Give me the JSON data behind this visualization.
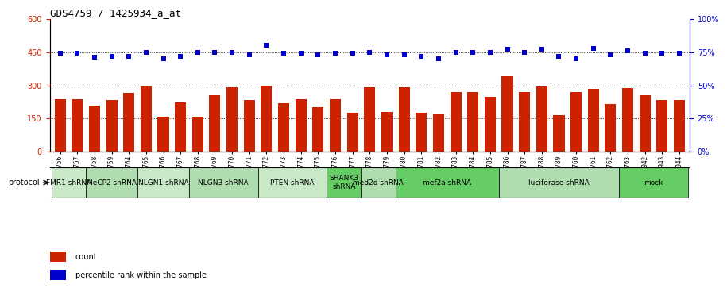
{
  "title": "GDS4759 / 1425934_a_at",
  "samples": [
    "GSM1145756",
    "GSM1145757",
    "GSM1145758",
    "GSM1145759",
    "GSM1145764",
    "GSM1145765",
    "GSM1145766",
    "GSM1145767",
    "GSM1145768",
    "GSM1145769",
    "GSM1145770",
    "GSM1145771",
    "GSM1145772",
    "GSM1145773",
    "GSM1145774",
    "GSM1145775",
    "GSM1145776",
    "GSM1145777",
    "GSM1145778",
    "GSM1145779",
    "GSM1145780",
    "GSM1145781",
    "GSM1145782",
    "GSM1145783",
    "GSM1145784",
    "GSM1145785",
    "GSM1145786",
    "GSM1145787",
    "GSM1145788",
    "GSM1145789",
    "GSM1145760",
    "GSM1145761",
    "GSM1145762",
    "GSM1145763",
    "GSM1145942",
    "GSM1145943",
    "GSM1145944"
  ],
  "bar_values": [
    237,
    237,
    210,
    232,
    265,
    300,
    157,
    222,
    157,
    255,
    290,
    235,
    300,
    220,
    237,
    200,
    237,
    175,
    290,
    178,
    290,
    175,
    169,
    270,
    270,
    247,
    340,
    270,
    295,
    167,
    270,
    285,
    217,
    287,
    255,
    235,
    232
  ],
  "percentile_values": [
    74,
    74,
    71,
    72,
    72,
    75,
    70,
    72,
    75,
    75,
    75,
    73,
    80,
    74,
    74,
    73,
    74,
    74,
    75,
    73,
    73,
    72,
    70,
    75,
    75,
    75,
    77,
    75,
    77,
    72,
    70,
    78,
    73,
    76,
    74,
    74,
    74
  ],
  "protocols": [
    {
      "label": "FMR1 shRNA",
      "start": 0,
      "end": 2,
      "color": "#c8e8c8"
    },
    {
      "label": "MeCP2 shRNA",
      "start": 2,
      "end": 5,
      "color": "#b0ddb0"
    },
    {
      "label": "NLGN1 shRNA",
      "start": 5,
      "end": 8,
      "color": "#c8e8c8"
    },
    {
      "label": "NLGN3 shRNA",
      "start": 8,
      "end": 12,
      "color": "#b0ddb0"
    },
    {
      "label": "PTEN shRNA",
      "start": 12,
      "end": 16,
      "color": "#c8e8c8"
    },
    {
      "label": "SHANK3\nshRNA",
      "start": 16,
      "end": 18,
      "color": "#66cc66"
    },
    {
      "label": "med2d shRNA",
      "start": 18,
      "end": 20,
      "color": "#b0ddb0"
    },
    {
      "label": "mef2a shRNA",
      "start": 20,
      "end": 26,
      "color": "#66cc66"
    },
    {
      "label": "luciferase shRNA",
      "start": 26,
      "end": 33,
      "color": "#b0ddb0"
    },
    {
      "label": "mock",
      "start": 33,
      "end": 37,
      "color": "#66cc66"
    }
  ],
  "ylim_left": [
    0,
    600
  ],
  "ylim_right": [
    0,
    100
  ],
  "yticks_left": [
    0,
    150,
    300,
    450,
    600
  ],
  "yticks_right": [
    0,
    25,
    50,
    75,
    100
  ],
  "bar_color": "#cc2200",
  "dot_color": "#0000cc",
  "bg_color": "#ffffff",
  "grid_color": "#000000",
  "tick_label_color_left": "#cc2200",
  "tick_label_color_right": "#0000cc",
  "title_fontsize": 9,
  "tick_fontsize": 7,
  "xlabel_fontsize": 5.5,
  "proto_fontsize": 6.5,
  "legend_fontsize": 7
}
